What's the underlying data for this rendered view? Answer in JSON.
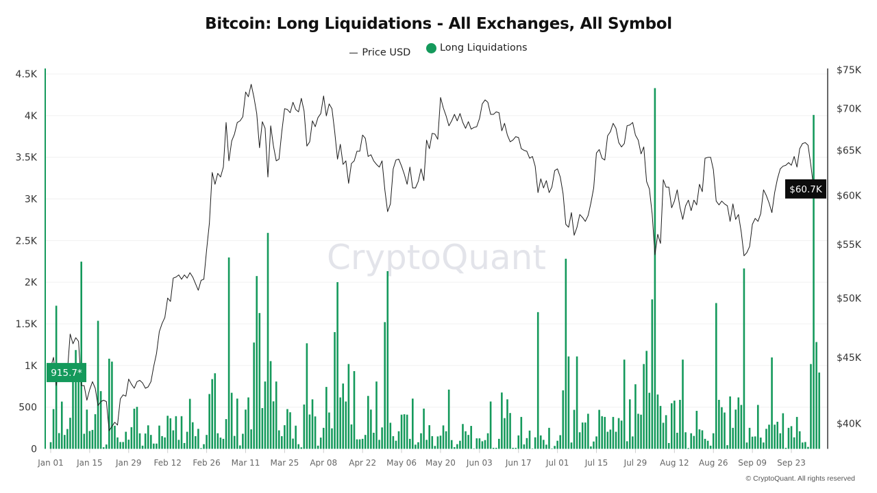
{
  "colors": {
    "liquidations": "#14995b",
    "price": "#1a1a1a",
    "grid": "#f0f0f0",
    "watermark": "#e3e4ea",
    "price_marker_bg": "#0c0c0c"
  },
  "watermark": "CryptoQuant",
  "copyright": "© CryptoQuant. All rights reserved",
  "chart_data": {
    "type": "bar+line",
    "title": "Bitcoin: Long Liquidations - All Exchanges, All Symbol",
    "legend_position": "top-center",
    "grid": true,
    "x_range": [
      "Jan 01",
      "Oct 03"
    ],
    "x_tick_labels": [
      "Jan 01",
      "Jan 15",
      "Jan 29",
      "Feb 12",
      "Feb 26",
      "Mar 11",
      "Mar 25",
      "Apr 08",
      "Apr 22",
      "May 06",
      "May 20",
      "Jun 03",
      "Jun 17",
      "Jul 01",
      "Jul 15",
      "Jul 29",
      "Aug 12",
      "Aug 26",
      "Sep 09",
      "Sep 23"
    ],
    "left_axis": {
      "ylim": [
        0,
        4500
      ],
      "tick_labels": [
        "0",
        "500",
        "1K",
        "1.5K",
        "2K",
        "2.5K",
        "3K",
        "3.5K",
        "4K",
        "4.5K"
      ],
      "tick_values": [
        0,
        500,
        1000,
        1500,
        2000,
        2500,
        3000,
        3500,
        4000,
        4500
      ]
    },
    "right_axis": {
      "scale": "log",
      "ylim": [
        38,
        75
      ],
      "tick_labels": [
        "$40K",
        "$45K",
        "$50K",
        "$55K",
        "$60K",
        "$65K",
        "$70K",
        "$75K"
      ],
      "tick_values": [
        40,
        45,
        50,
        55,
        60,
        65,
        70,
        75
      ]
    },
    "last_values": {
      "liquidations": "915.7*",
      "price": "$60.7K"
    },
    "series": [
      {
        "name": "Price USD",
        "type": "line",
        "axis": "right",
        "unit": "USD thousands",
        "values": [
          44.2,
          45.0,
          42.8,
          44.2,
          44.2,
          43.9,
          43.9,
          46.9,
          46.1,
          46.6,
          46.3,
          42.8,
          42.8,
          41.7,
          42.5,
          43.1,
          42.6,
          41.3,
          41.6,
          41.7,
          41.6,
          39.5,
          39.8,
          40.1,
          39.9,
          41.8,
          42.1,
          42.0,
          43.3,
          42.9,
          42.6,
          43.1,
          43.2,
          43.0,
          42.6,
          42.7,
          43.1,
          44.3,
          45.3,
          47.1,
          47.8,
          48.3,
          50.0,
          49.7,
          51.8,
          51.9,
          52.1,
          51.7,
          52.1,
          51.8,
          52.3,
          51.9,
          51.3,
          50.7,
          51.6,
          51.7,
          54.5,
          57.1,
          62.5,
          61.2,
          62.4,
          62.0,
          63.1,
          68.3,
          63.8,
          66.1,
          66.9,
          68.3,
          68.5,
          69.0,
          72.1,
          71.5,
          73.1,
          71.4,
          69.4,
          65.3,
          68.4,
          67.6,
          62.0,
          67.9,
          65.5,
          63.8,
          64.0,
          67.2,
          70.0,
          69.9,
          69.5,
          70.8,
          69.9,
          69.6,
          71.3,
          69.7,
          65.5,
          66.0,
          68.5,
          67.8,
          68.9,
          69.4,
          71.6,
          69.1,
          70.6,
          70.0,
          67.2,
          64.0,
          65.7,
          63.4,
          63.8,
          61.3,
          63.5,
          63.8,
          64.9,
          64.9,
          66.8,
          66.4,
          64.3,
          64.5,
          63.8,
          63.4,
          63.1,
          63.8,
          60.6,
          58.3,
          59.1,
          62.9,
          63.9,
          64.0,
          63.2,
          62.3,
          61.2,
          63.1,
          60.8,
          60.8,
          61.5,
          62.9,
          61.6,
          66.2,
          65.2,
          67.0,
          66.9,
          66.3,
          71.4,
          70.1,
          69.1,
          67.9,
          68.5,
          69.3,
          68.5,
          69.4,
          68.3,
          67.6,
          68.4,
          67.5,
          67.7,
          67.8,
          68.8,
          70.6,
          71.1,
          70.8,
          69.3,
          69.3,
          69.6,
          69.5,
          67.3,
          68.2,
          66.8,
          66.0,
          66.2,
          66.6,
          66.5,
          65.2,
          65.0,
          64.9,
          64.1,
          64.3,
          63.2,
          60.3,
          61.8,
          60.8,
          61.6,
          60.3,
          60.9,
          62.7,
          62.9,
          62.0,
          60.2,
          57.0,
          56.7,
          58.2,
          55.9,
          56.7,
          58.0,
          57.7,
          57.3,
          57.9,
          59.2,
          60.8,
          64.7,
          65.1,
          64.1,
          63.9,
          66.7,
          67.2,
          68.2,
          67.6,
          65.9,
          65.4,
          65.8,
          67.9,
          68.0,
          68.3,
          66.8,
          66.2,
          64.6,
          65.4,
          61.5,
          60.7,
          58.1,
          54.0,
          56.0,
          55.1,
          61.7,
          60.9,
          60.9,
          58.7,
          59.4,
          60.6,
          58.7,
          57.5,
          58.9,
          59.5,
          58.4,
          59.5,
          59.0,
          61.2,
          60.4,
          64.1,
          64.2,
          64.2,
          62.8,
          59.4,
          59.0,
          59.4,
          59.1,
          58.9,
          57.3,
          59.1,
          57.5,
          58.0,
          56.2,
          53.9,
          54.2,
          54.8,
          57.0,
          57.6,
          57.3,
          58.1,
          60.6,
          60.0,
          59.2,
          58.2,
          60.3,
          61.8,
          62.9,
          63.2,
          63.3,
          63.6,
          63.3,
          64.3,
          63.1,
          65.2,
          65.8,
          65.9,
          65.6,
          63.3,
          60.8,
          60.6,
          60.7
        ]
      },
      {
        "name": "Long Liquidations",
        "type": "bar",
        "axis": "left",
        "values": [
          80,
          477,
          1718,
          189,
          567,
          167,
          238,
          373,
          929,
          1186,
          956,
          2247,
          181,
          471,
          214,
          227,
          416,
          1537,
          693,
          19,
          52,
          1082,
          1047,
          277,
          137,
          82,
          82,
          205,
          110,
          260,
          482,
          504,
          186,
          38,
          184,
          282,
          167,
          63,
          63,
          279,
          153,
          137,
          397,
          367,
          222,
          392,
          108,
          392,
          70,
          205,
          600,
          319,
          152,
          240,
          9,
          56,
          167,
          658,
          837,
          907,
          187,
          135,
          120,
          357,
          2297,
          673,
          155,
          603,
          41,
          181,
          471,
          617,
          234,
          1276,
          2074,
          1630,
          489,
          808,
          2592,
          1053,
          570,
          808,
          222,
          152,
          284,
          477,
          439,
          123,
          278,
          56,
          18,
          532,
          1267,
          412,
          594,
          389,
          38,
          135,
          252,
          743,
          436,
          246,
          1401,
          2001,
          617,
          784,
          568,
          1018,
          293,
          933,
          114,
          114,
          120,
          167,
          635,
          471,
          193,
          808,
          108,
          257,
          1521,
          2133,
          313,
          152,
          97,
          211,
          410,
          415,
          410,
          120,
          603,
          50,
          79,
          187,
          483,
          108,
          284,
          152,
          35,
          149,
          158,
          281,
          211,
          711,
          105,
          20,
          56,
          97,
          298,
          211,
          167,
          275,
          5,
          126,
          126,
          91,
          105,
          187,
          568,
          12,
          12,
          120,
          676,
          369,
          594,
          430,
          12,
          12,
          161,
          383,
          53,
          129,
          219,
          5,
          138,
          1641,
          161,
          108,
          50,
          252,
          5,
          35,
          97,
          164,
          702,
          2282,
          1109,
          76,
          468,
          1109,
          199,
          316,
          316,
          421,
          29,
          88,
          149,
          468,
          392,
          383,
          205,
          231,
          383,
          205,
          369,
          339,
          1071,
          91,
          594,
          149,
          775,
          421,
          410,
          1018,
          1176,
          673,
          1794,
          4330,
          652,
          515,
          313,
          404,
          70,
          547,
          579,
          193,
          588,
          1071,
          199,
          9,
          187,
          155,
          456,
          234,
          222,
          120,
          97,
          38,
          187,
          1750,
          588,
          500,
          436,
          44,
          629,
          252,
          471,
          617,
          527,
          2165,
          76,
          252,
          146,
          149,
          527,
          135,
          76,
          240,
          290,
          1097,
          290,
          325,
          187,
          427,
          12,
          252,
          272,
          138,
          383,
          211,
          76,
          82,
          23,
          1018,
          4008,
          1282,
          915.7
        ]
      }
    ]
  }
}
